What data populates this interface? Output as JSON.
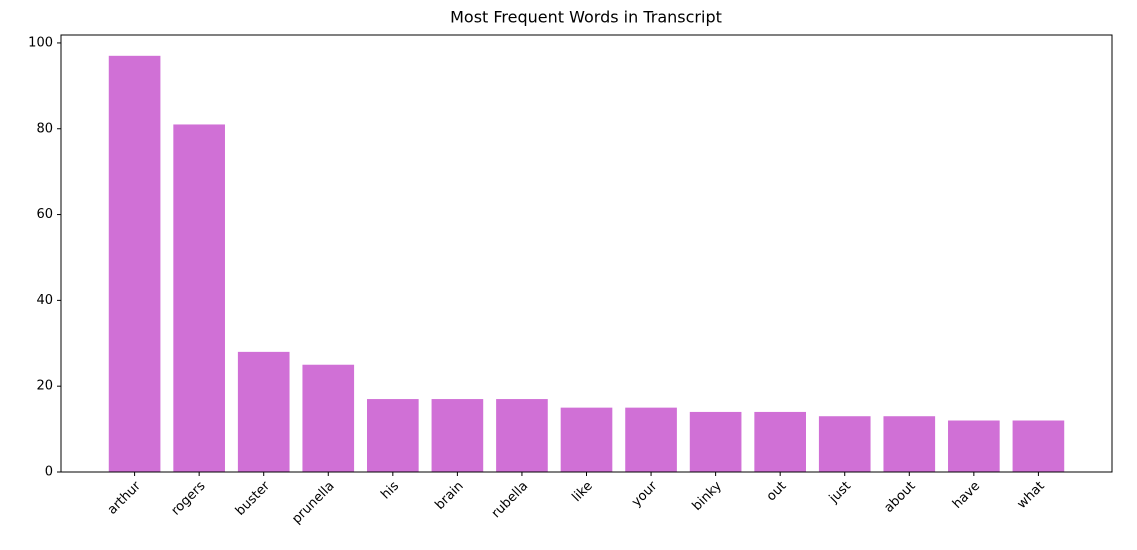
{
  "chart_data": {
    "type": "bar",
    "title": "Most Frequent Words in Transcript",
    "categories": [
      "arthur",
      "rogers",
      "buster",
      "prunella",
      "his",
      "brain",
      "rubella",
      "like",
      "your",
      "binky",
      "out",
      "just",
      "about",
      "have",
      "what"
    ],
    "values": [
      97,
      81,
      28,
      25,
      17,
      17,
      17,
      15,
      15,
      14,
      14,
      13,
      13,
      12,
      12
    ],
    "color": "#d070d6",
    "ylim": [
      0,
      101.85
    ],
    "yticks": [
      0,
      20,
      40,
      60,
      80,
      100
    ],
    "grid": false
  }
}
